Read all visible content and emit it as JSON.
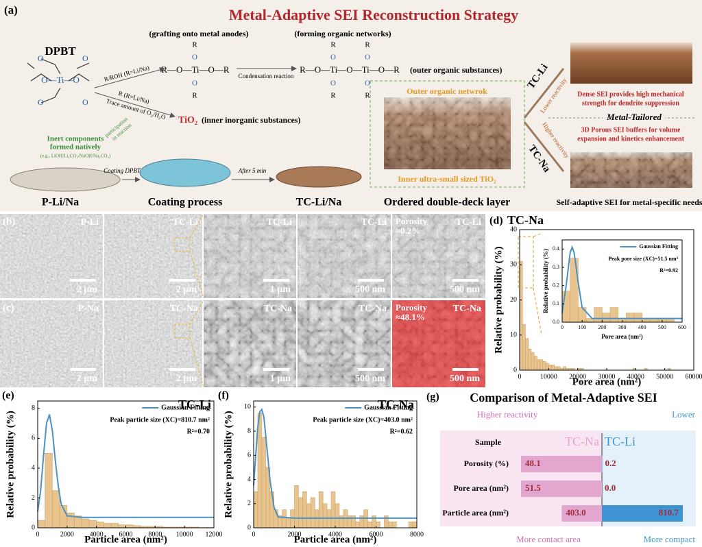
{
  "panel_a": {
    "label": "(a)",
    "title": "Metal-Adaptive SEI Reconstruction Strategy",
    "precursor": "DPBT",
    "dpbt_core": "O—Ti—O",
    "dpbt_o": [
      "O",
      "O",
      "O",
      "O"
    ],
    "grafting": "(grafting onto metal anodes)",
    "grafted_chain": "R—O—Ti—O—R",
    "grafted_top": [
      "R",
      "O"
    ],
    "grafted_bottom": [
      "O",
      "R"
    ],
    "network_note": "(forming organic networks)",
    "network_chain": "R—O—Ti—O—Ti—O—R",
    "network_top": [
      "R",
      "O",
      "R",
      "O"
    ],
    "network_bottom": [
      "O",
      "R",
      "O",
      "R"
    ],
    "condensation": "Condensation reaction",
    "outer_substances": "(outer organic substances)",
    "reagent_1": "R/ROH (R=Li/Na)",
    "reagent_2": "R (R=Li/Na)",
    "reagent_3": "Trace amount of O₂/H₂O",
    "tio2": "TiO₂",
    "inner_substances": "(inner inorganic substances)",
    "inert": [
      "Inert components",
      "formed natively"
    ],
    "inert_examples": "(e.g., LiOH/Li₂CO₃/NaOH/Na₂CO₃)",
    "participation": [
      "participation",
      "in reaction"
    ],
    "step_1": "Coating DPBT",
    "step_2": "After 5 min",
    "stage_1": "P-Li/Na",
    "stage_2": "Coating process",
    "stage_3": "TC-Li/Na",
    "stage_4": "Ordered double-deck layer",
    "outer_layer": "Outer organic netwrok",
    "inner_layer": "Inner ultra-small sized TiO₂",
    "branch_li": "TC-Li",
    "branch_li_note": "Lower reactivity",
    "branch_na": "TC-Na",
    "branch_na_note": "Higher reactivity",
    "tailored": "Metal-Tailored",
    "li_result": [
      "Dense SEI provides high mechanical",
      "strength for dendrite suppression"
    ],
    "na_result": [
      "3D Porous SEI buffers for volume",
      "expansion and kinetics enhancement"
    ],
    "conclusion": "Self-adaptive SEI for metal-specific needs"
  },
  "sem": {
    "rows": [
      {
        "label": "(b)",
        "images": [
          {
            "sample": "P-Li",
            "scale": "2 μm"
          },
          {
            "sample": "TC-Li",
            "scale": "2 μm"
          },
          {
            "sample": "TC-Li",
            "scale": "1 μm"
          },
          {
            "sample": "TC-Li",
            "scale": "500 nm"
          },
          {
            "sample": "TC-Li",
            "scale": "500 nm",
            "porosity": [
              "Porosity",
              "≈0.2%"
            ]
          }
        ]
      },
      {
        "label": "(c)",
        "images": [
          {
            "sample": "P-Na",
            "scale": "2 μm"
          },
          {
            "sample": "TC-Na",
            "scale": "2 μm"
          },
          {
            "sample": "TC-Na",
            "scale": "1 μm"
          },
          {
            "sample": "TC-Na",
            "scale": "500 nm"
          },
          {
            "sample": "TC-Na",
            "scale": "500 nm",
            "porosity": [
              "Porosity",
              "≈48.1%"
            ]
          }
        ]
      }
    ]
  },
  "chart_data": [
    {
      "type": "histogram",
      "label": "(d)",
      "title": "TC-Na",
      "x_label": "Pore area (nm²)",
      "y_label": "Relative probability (%)",
      "bins": [
        0,
        1000,
        2000,
        3000,
        4000,
        5000,
        6000,
        7000,
        8000,
        9000,
        10000,
        11000,
        12000,
        13000,
        14000,
        15000,
        16000,
        17000,
        18000,
        19000,
        20000,
        21000,
        22000,
        39000,
        40000,
        43000,
        44000,
        51000,
        52000
      ],
      "values": [
        31,
        13,
        9,
        6,
        5,
        4,
        3,
        3,
        2.5,
        2,
        1.5,
        1.5,
        1,
        1,
        0.5,
        1,
        0.5,
        0.5,
        0.5,
        0,
        0.5,
        0.5,
        0,
        0.5,
        0,
        0.5,
        0,
        0.5
      ],
      "color": "#e8c48e",
      "edge_color": "#c99a5c",
      "xlim": [
        0,
        60000
      ],
      "xticks": [
        0,
        10000,
        20000,
        30000,
        40000,
        50000,
        60000
      ],
      "ylim": [
        0,
        40
      ],
      "yticks": [
        0,
        10,
        20,
        30,
        40
      ]
    },
    {
      "type": "histogram",
      "x_label": "Pore area (nm²)",
      "y_label": "Relative probability (%)",
      "bins": [
        0,
        40,
        80,
        120,
        160,
        200,
        240,
        280,
        320,
        360,
        400,
        440,
        480,
        520,
        560
      ],
      "values": [
        0.17,
        0.35,
        0.08,
        0.02,
        0.08,
        0.05,
        0.08,
        0.02,
        0.05,
        0.05,
        0.02,
        0.02,
        0.02,
        0.02
      ],
      "color": "#e8c48e",
      "edge_color": "#c99a5c",
      "fit": {
        "name": "Gaussian Fitting",
        "color": "#4a92c4",
        "x": [
          0,
          20,
          40,
          50,
          60,
          80,
          100,
          150,
          600
        ],
        "values": [
          0.05,
          0.2,
          0.38,
          0.41,
          0.38,
          0.22,
          0.08,
          0.02,
          0.02
        ]
      },
      "annotations": [
        "Peak pore size (XC)=51.5 nm²",
        "R²=0.92"
      ],
      "xlim": [
        0,
        600
      ],
      "xticks": [
        0,
        100,
        200,
        300,
        400,
        500,
        600
      ],
      "ylim": [
        0,
        0.45
      ],
      "yticks": [
        {
          "value": 0,
          "label": "0.0"
        },
        0.1,
        0.2,
        0.3,
        0.4
      ]
    },
    {
      "type": "histogram",
      "label": "(e)",
      "title": "TC-Li",
      "x_label": "Particle area (nm²)",
      "y_label": "Relative probability (%)",
      "bins": [
        0,
        500,
        1000,
        1500,
        2000,
        2500,
        3000,
        3500,
        4000,
        4500,
        5000,
        5500,
        6000,
        6500,
        7000,
        7500,
        8000,
        8500,
        9000,
        9500,
        10000,
        10500,
        11000,
        11500,
        12000
      ],
      "values": [
        0.5,
        5,
        2.5,
        1.5,
        1,
        0.8,
        0.6,
        0.5,
        0.4,
        0.3,
        0.3,
        0.2,
        0.2,
        0.15,
        0.1,
        0.1,
        0.1,
        0.05,
        0.05,
        0.05,
        0.05,
        0.05,
        0.02,
        0.02
      ],
      "color": "#e8c48e",
      "edge_color": "#c99a5c",
      "fit": {
        "name": "Gaussian Fitting",
        "color": "#4a92c4",
        "x": [
          0,
          200,
          400,
          600,
          800,
          1000,
          1200,
          1400,
          1600,
          2000,
          3000,
          12000
        ],
        "values": [
          1.1,
          2.5,
          4.9,
          7.0,
          7.6,
          6.5,
          4.5,
          2.8,
          1.6,
          0.8,
          0.7,
          0.7
        ]
      },
      "annotations": [
        "Peak particle size (XC)=810.7 nm²",
        "R²=0.70"
      ],
      "xlim": [
        0,
        12000
      ],
      "xticks": [
        0,
        2000,
        4000,
        6000,
        8000,
        10000,
        12000
      ],
      "ylim": [
        0,
        8.5
      ],
      "yticks": [
        0,
        2,
        4,
        6,
        8
      ]
    },
    {
      "type": "histogram",
      "label": "(f)",
      "title": "TC-Na",
      "x_label": "Particle area (nm²)",
      "y_label": "Relative probability (%)",
      "bins": [
        0,
        200,
        400,
        600,
        800,
        1000,
        1200,
        1400,
        1600,
        1800,
        2000,
        2200,
        2400,
        2600,
        2800,
        3000,
        3200,
        3400,
        3600,
        3800,
        4000,
        4200,
        4400,
        4600,
        4800,
        5000,
        5200,
        5400,
        5600,
        5800,
        6000,
        6200,
        6400,
        6600,
        6800,
        7000,
        7200,
        7400,
        7600,
        7800,
        8000
      ],
      "values": [
        3,
        9.5,
        7.5,
        5,
        3,
        1.5,
        1,
        1.5,
        0.8,
        1.5,
        3.5,
        2.5,
        3,
        2,
        2.5,
        1.5,
        3,
        2,
        1.5,
        3,
        2,
        1,
        1.5,
        1,
        1,
        0.5,
        1,
        1.5,
        0.5,
        1,
        0.5,
        0,
        1,
        0.5,
        0.5,
        0,
        0,
        0,
        0.5,
        0.5
      ],
      "color": "#e8c48e",
      "edge_color": "#c99a5c",
      "fit": {
        "name": "Gaussian Fitting",
        "color": "#4a92c4",
        "x": [
          0,
          100,
          200,
          300,
          400,
          500,
          600,
          800,
          1000,
          1200,
          2000,
          8000
        ],
        "values": [
          3.5,
          6,
          8.3,
          9.6,
          9.8,
          9.2,
          7.5,
          4,
          1.7,
          0.9,
          0.8,
          0.8
        ]
      },
      "annotations": [
        "Peak particle size (XC)=403.0 nm²",
        "R²=0.62"
      ],
      "xlim": [
        0,
        8000
      ],
      "xticks": [
        0,
        2000,
        4000,
        6000,
        8000
      ],
      "ylim": [
        0,
        10.5
      ],
      "yticks": [
        0,
        2,
        4,
        6,
        8,
        10
      ]
    },
    {
      "type": "diverging-bar",
      "label": "(g)",
      "title": "Comparison of Metal-Adaptive SEI",
      "header": "Sample",
      "top_left": "Higher reactivity",
      "top_right": "Lower",
      "bottom_left": "More contact area",
      "bottom_right": "More compact",
      "categories": [
        "Porosity (%)",
        "Pore area (nm²)",
        "Particle area (nm²)"
      ],
      "series": [
        {
          "name": "TC-Na",
          "color": "#e3a6cf",
          "values": [
            48.1,
            51.5,
            403.0
          ],
          "value_labels": [
            "48.1",
            "51.5",
            "403.0"
          ]
        },
        {
          "name": "TC-Li",
          "color": "#3f95d3",
          "values": [
            0.2,
            0.0,
            810.7
          ],
          "value_labels": [
            "0.2",
            "0.0",
            "810.7"
          ]
        }
      ]
    }
  ]
}
